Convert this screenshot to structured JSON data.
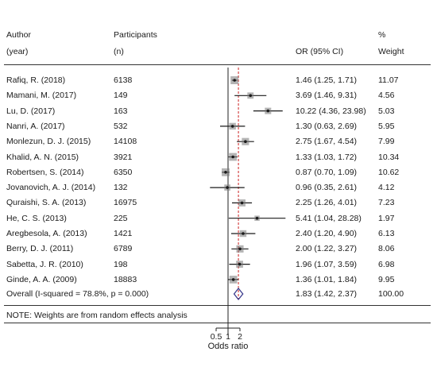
{
  "header": {
    "author": "Author",
    "year": "(year)",
    "participants": "Participants",
    "n": "(n)",
    "or_ci": "OR (95% CI)",
    "pct": "%",
    "weight": "Weight"
  },
  "note": "NOTE: Weights are from random effects analysis",
  "chart_data": {
    "type": "forest",
    "xlabel": "Odds ratio",
    "x_ticks": [
      "0.5",
      "1",
      "2"
    ],
    "x_scale": "log",
    "xlim": [
      0.3,
      25
    ],
    "null_line": 1,
    "overall_line": 1.83,
    "studies": [
      {
        "author": "Rafiq, R. (2018)",
        "participants": "6138",
        "or": 1.46,
        "lo": 1.25,
        "hi": 1.71,
        "ci_text": "1.46 (1.25, 1.71)",
        "weight": "11.07"
      },
      {
        "author": "Mamani, M. (2017)",
        "participants": "149",
        "or": 3.69,
        "lo": 1.46,
        "hi": 9.31,
        "ci_text": "3.69 (1.46, 9.31)",
        "weight": "4.56"
      },
      {
        "author": "Lu, D. (2017)",
        "participants": "163",
        "or": 10.22,
        "lo": 4.36,
        "hi": 23.98,
        "ci_text": "10.22 (4.36, 23.98)",
        "weight": "5.03"
      },
      {
        "author": "Nanri, A. (2017)",
        "participants": "532",
        "or": 1.3,
        "lo": 0.63,
        "hi": 2.69,
        "ci_text": "1.30 (0.63, 2.69)",
        "weight": "5.95"
      },
      {
        "author": "Monlezun, D. J. (2015)",
        "participants": "14108",
        "or": 2.75,
        "lo": 1.67,
        "hi": 4.54,
        "ci_text": "2.75 (1.67, 4.54)",
        "weight": "7.99"
      },
      {
        "author": "Khalid, A. N. (2015)",
        "participants": "3921",
        "or": 1.33,
        "lo": 1.03,
        "hi": 1.72,
        "ci_text": "1.33 (1.03, 1.72)",
        "weight": "10.34"
      },
      {
        "author": "Robertsen, S. (2014)",
        "participants": "6350",
        "or": 0.87,
        "lo": 0.7,
        "hi": 1.09,
        "ci_text": "0.87 (0.70, 1.09)",
        "weight": "10.62"
      },
      {
        "author": "Jovanovich, A. J. (2014)",
        "participants": "132",
        "or": 0.96,
        "lo": 0.35,
        "hi": 2.61,
        "ci_text": "0.96 (0.35, 2.61)",
        "weight": "4.12"
      },
      {
        "author": "Quraishi, S. A. (2013)",
        "participants": "16975",
        "or": 2.25,
        "lo": 1.26,
        "hi": 4.01,
        "ci_text": "2.25 (1.26, 4.01)",
        "weight": "7.23"
      },
      {
        "author": "He, C. S. (2013)",
        "participants": "225",
        "or": 5.41,
        "lo": 1.04,
        "hi": 28.28,
        "ci_text": "5.41 (1.04, 28.28)",
        "weight": "1.97"
      },
      {
        "author": "Aregbesola, A. (2013)",
        "participants": "1421",
        "or": 2.4,
        "lo": 1.2,
        "hi": 4.9,
        "ci_text": "2.40 (1.20, 4.90)",
        "weight": "6.13"
      },
      {
        "author": "Berry, D. J. (2011)",
        "participants": "6789",
        "or": 2.0,
        "lo": 1.22,
        "hi": 3.27,
        "ci_text": "2.00 (1.22, 3.27)",
        "weight": "8.06"
      },
      {
        "author": "Sabetta, J. R. (2010)",
        "participants": "198",
        "or": 1.96,
        "lo": 1.07,
        "hi": 3.59,
        "ci_text": "1.96 (1.07, 3.59)",
        "weight": "6.98"
      },
      {
        "author": "Ginde, A. A. (2009)",
        "participants": "18883",
        "or": 1.36,
        "lo": 1.01,
        "hi": 1.84,
        "ci_text": "1.36 (1.01, 1.84)",
        "weight": "9.95"
      }
    ],
    "overall": {
      "label": "Overall  (I-squared = 78.8%, p = 0.000)",
      "or": 1.83,
      "lo": 1.42,
      "hi": 2.37,
      "ci_text": "1.83 (1.42, 2.37)",
      "weight": "100.00"
    },
    "colors": {
      "marker": "#1a1a1a",
      "box": "#777777",
      "overall_line": "#cc2222",
      "diamond": "#3a3a8c"
    }
  }
}
